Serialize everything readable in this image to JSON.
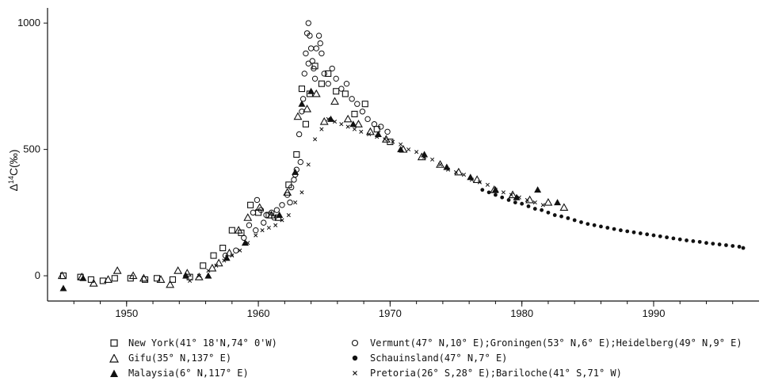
{
  "chart_data": {
    "type": "scatter",
    "title": "",
    "xlabel": "",
    "ylabel_prefix": "Δ",
    "ylabel_sup": "14",
    "ylabel_rest": "C(‰)",
    "xlim": [
      1944,
      1998
    ],
    "ylim": [
      -100,
      1060
    ],
    "x_ticks": [
      1950,
      1960,
      1970,
      1980,
      1990
    ],
    "y_ticks": [
      0,
      500,
      1000
    ],
    "grid": false,
    "legend_position": "bottom",
    "series": [
      {
        "name": "New York(41° 18'N,74° 0'W)",
        "marker": "open-square",
        "x": [
          1945.2,
          1946.5,
          1947.3,
          1948.2,
          1949.1,
          1950.3,
          1951.4,
          1952.3,
          1953.5,
          1954.8,
          1955.8,
          1956.6,
          1957.3,
          1958.0,
          1958.7,
          1959.4,
          1960.0,
          1960.8,
          1961.5,
          1962.3,
          1962.9,
          1963.3,
          1963.6,
          1963.9,
          1964.3,
          1964.8,
          1965.3,
          1965.9,
          1966.6,
          1967.3,
          1968.1,
          1969.0,
          1970.0
        ],
        "y": [
          0,
          -5,
          -15,
          -20,
          -10,
          -10,
          -15,
          -10,
          -15,
          -5,
          40,
          80,
          110,
          180,
          170,
          280,
          250,
          240,
          230,
          360,
          480,
          740,
          600,
          720,
          830,
          760,
          800,
          730,
          720,
          640,
          680,
          580,
          530
        ]
      },
      {
        "name": "Gifu(35° N,137° E)",
        "marker": "open-triangle",
        "x": [
          1945.1,
          1946.6,
          1947.5,
          1948.6,
          1949.3,
          1950.5,
          1951.3,
          1952.6,
          1953.3,
          1953.9,
          1954.6,
          1955.5,
          1956.5,
          1957.0,
          1957.8,
          1958.5,
          1959.2,
          1960.1,
          1961.0,
          1962.2,
          1963.0,
          1963.7,
          1964.4,
          1965.0,
          1965.8,
          1966.8,
          1967.6,
          1968.5,
          1969.7,
          1971.0,
          1972.4,
          1973.8,
          1975.2,
          1976.6,
          1977.9,
          1979.3,
          1980.6,
          1982.0,
          1983.2
        ],
        "y": [
          0,
          -5,
          -30,
          -15,
          20,
          0,
          -10,
          -15,
          -35,
          20,
          10,
          -5,
          30,
          50,
          90,
          180,
          230,
          270,
          240,
          330,
          630,
          660,
          720,
          610,
          690,
          620,
          600,
          570,
          540,
          500,
          470,
          440,
          410,
          380,
          340,
          320,
          300,
          290,
          270
        ]
      },
      {
        "name": "Malaysia(6° N,117° E)",
        "marker": "filled-triangle",
        "x": [
          1945.2,
          1946.7,
          1954.5,
          1956.2,
          1957.6,
          1959.0,
          1961.6,
          1962.8,
          1963.3,
          1964.0,
          1965.5,
          1967.2,
          1969.1,
          1970.8,
          1972.6,
          1974.3,
          1976.1,
          1978.0,
          1979.6,
          1981.2,
          1982.7
        ],
        "y": [
          -50,
          -10,
          0,
          0,
          70,
          130,
          240,
          410,
          680,
          730,
          620,
          600,
          560,
          500,
          480,
          430,
          390,
          340,
          310,
          340,
          290
        ]
      },
      {
        "name": "Vermunt(47° N,10° E);Groningen(53° N,6° E);Heidelberg(49° N,9° E)",
        "marker": "open-circle",
        "x": [
          1957.5,
          1958.3,
          1958.9,
          1959.3,
          1959.6,
          1959.9,
          1960.2,
          1960.6,
          1961.0,
          1961.4,
          1961.8,
          1962.2,
          1962.5,
          1962.7,
          1962.9,
          1963.1,
          1963.3,
          1963.5,
          1963.6,
          1963.7,
          1963.8,
          1963.9,
          1964.0,
          1964.1,
          1964.2,
          1964.4,
          1964.6,
          1964.8,
          1965.0,
          1965.3,
          1965.6,
          1965.9,
          1966.3,
          1966.7,
          1967.1,
          1967.5,
          1967.9,
          1968.3,
          1968.8,
          1969.3,
          1969.8,
          1963.4,
          1963.8,
          1964.3,
          1964.7,
          1963.2,
          1962.8,
          1962.4,
          1961.2,
          1960.4,
          1959.8
        ],
        "y": [
          80,
          100,
          150,
          200,
          250,
          300,
          260,
          240,
          250,
          260,
          280,
          320,
          350,
          380,
          420,
          560,
          650,
          800,
          880,
          960,
          1000,
          950,
          900,
          850,
          820,
          900,
          950,
          880,
          800,
          760,
          820,
          780,
          740,
          760,
          700,
          680,
          650,
          620,
          600,
          590,
          570,
          700,
          840,
          780,
          920,
          450,
          400,
          290,
          230,
          210,
          180
        ]
      },
      {
        "name": "Schauinsland(47° N,7° E)",
        "marker": "filled-circle",
        "x": [
          1977.0,
          1977.5,
          1978.0,
          1978.5,
          1979.0,
          1979.5,
          1980.0,
          1980.5,
          1981.0,
          1981.5,
          1982.0,
          1982.5,
          1983.0,
          1983.5,
          1984.0,
          1984.5,
          1985.0,
          1985.5,
          1986.0,
          1986.5,
          1987.0,
          1987.5,
          1988.0,
          1988.5,
          1989.0,
          1989.5,
          1990.0,
          1990.5,
          1991.0,
          1991.5,
          1992.0,
          1992.5,
          1993.0,
          1993.5,
          1994.0,
          1994.5,
          1995.0,
          1995.5,
          1996.0,
          1996.5,
          1996.8
        ],
        "y": [
          340,
          330,
          320,
          310,
          300,
          290,
          285,
          275,
          265,
          260,
          250,
          240,
          235,
          228,
          220,
          212,
          205,
          200,
          195,
          190,
          185,
          180,
          176,
          172,
          168,
          164,
          160,
          156,
          152,
          148,
          144,
          140,
          137,
          134,
          130,
          127,
          124,
          121,
          118,
          115,
          110
        ]
      },
      {
        "name": "Pretoria(26° S,28° E);Bariloche(41° S,71° W)",
        "marker": "cross",
        "x": [
          1954.8,
          1955.5,
          1956.2,
          1956.8,
          1957.4,
          1958.0,
          1958.6,
          1959.2,
          1959.8,
          1960.3,
          1960.8,
          1961.3,
          1961.8,
          1962.3,
          1962.8,
          1963.3,
          1963.8,
          1964.3,
          1964.8,
          1965.3,
          1965.8,
          1966.3,
          1966.8,
          1967.3,
          1967.8,
          1968.4,
          1969.0,
          1969.6,
          1970.2,
          1970.8,
          1971.4,
          1972.0,
          1972.6,
          1973.2,
          1973.8,
          1974.4,
          1975.0,
          1975.6,
          1976.2,
          1976.8,
          1977.4,
          1978.0,
          1978.6,
          1979.2,
          1979.8,
          1980.4,
          1981.0,
          1981.6
        ],
        "y": [
          -20,
          0,
          20,
          40,
          60,
          80,
          100,
          130,
          160,
          180,
          190,
          200,
          220,
          240,
          290,
          330,
          440,
          540,
          580,
          620,
          610,
          600,
          590,
          580,
          570,
          560,
          550,
          540,
          530,
          520,
          500,
          490,
          470,
          460,
          440,
          420,
          410,
          400,
          380,
          370,
          360,
          340,
          330,
          320,
          310,
          300,
          290,
          280
        ]
      }
    ]
  }
}
